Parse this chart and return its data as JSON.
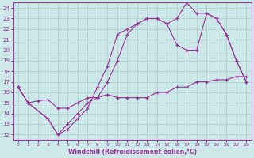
{
  "xlabel": "Windchill (Refroidissement éolien,°C)",
  "xlim": [
    -0.5,
    23.5
  ],
  "ylim": [
    11.5,
    24.5
  ],
  "yticks": [
    12,
    13,
    14,
    15,
    16,
    17,
    18,
    19,
    20,
    21,
    22,
    23,
    24
  ],
  "xticks": [
    0,
    1,
    2,
    3,
    4,
    5,
    6,
    7,
    8,
    9,
    10,
    11,
    12,
    13,
    14,
    15,
    16,
    17,
    18,
    19,
    20,
    21,
    22,
    23
  ],
  "line_color": "#993399",
  "bg_color": "#cce8e8",
  "grid_color": "#aacccc",
  "line1_x": [
    0,
    1,
    3,
    4,
    5,
    6,
    7,
    8,
    9,
    10,
    11,
    12,
    13,
    14,
    15,
    16,
    17,
    18,
    19,
    20,
    21,
    22,
    23
  ],
  "line1_y": [
    16.5,
    15.0,
    13.5,
    12.0,
    13.0,
    14.0,
    15.0,
    15.5,
    17.0,
    19.0,
    21.5,
    22.5,
    23.0,
    23.0,
    22.5,
    20.5,
    20.0,
    20.0,
    23.5,
    23.0,
    21.5,
    19.0,
    17.0
  ],
  "line2_x": [
    0,
    1,
    3,
    4,
    5,
    6,
    7,
    8,
    9,
    10,
    11,
    12,
    13,
    14,
    15,
    16,
    17,
    18,
    19,
    20,
    21,
    22,
    23
  ],
  "line2_y": [
    16.5,
    15.0,
    13.5,
    12.0,
    12.5,
    13.5,
    14.5,
    16.5,
    18.5,
    21.5,
    22.0,
    22.5,
    23.0,
    23.0,
    22.5,
    23.0,
    24.5,
    23.5,
    23.5,
    23.0,
    21.5,
    19.0,
    17.0
  ],
  "line3_x": [
    0,
    1,
    2,
    3,
    4,
    5,
    6,
    7,
    8,
    9,
    10,
    11,
    12,
    13,
    14,
    15,
    16,
    17,
    18,
    19,
    20,
    21,
    22,
    23
  ],
  "line3_y": [
    16.5,
    15.0,
    15.2,
    15.3,
    14.5,
    14.5,
    15.0,
    15.5,
    15.5,
    15.8,
    15.5,
    15.5,
    15.5,
    15.5,
    16.0,
    16.0,
    16.5,
    16.5,
    17.0,
    17.0,
    17.2,
    17.2,
    17.5,
    17.5
  ]
}
